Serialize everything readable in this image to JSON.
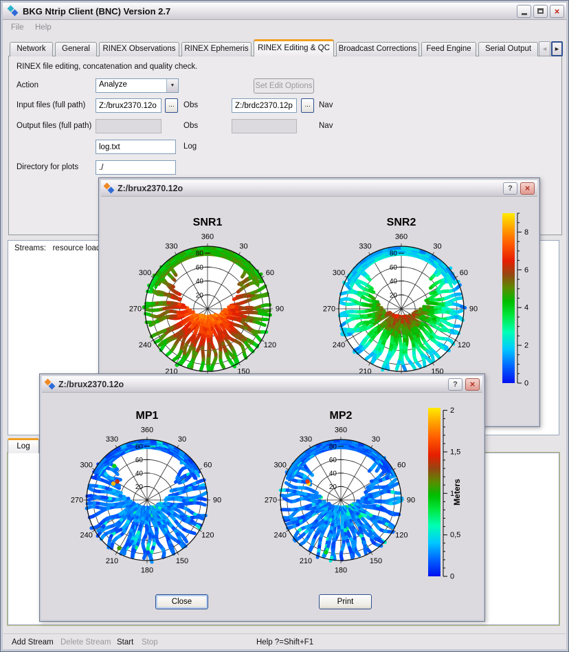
{
  "window": {
    "title": "BKG Ntrip Client (BNC) Version 2.7"
  },
  "icons": {
    "help": "?",
    "close": "×",
    "scroll_left": "◄",
    "scroll_right": "►",
    "combo_arrow": "▼"
  },
  "menu": {
    "items": [
      {
        "label": "File"
      },
      {
        "label": "Help"
      }
    ]
  },
  "tabs": {
    "items": [
      {
        "label": "Network",
        "active": false
      },
      {
        "label": "General",
        "active": false
      },
      {
        "label": "RINEX Observations",
        "active": false
      },
      {
        "label": "RINEX Ephemeris",
        "active": false
      },
      {
        "label": "RINEX Editing & QC",
        "active": true
      },
      {
        "label": "Broadcast Corrections",
        "active": false
      },
      {
        "label": "Feed Engine",
        "active": false
      },
      {
        "label": "Serial Output",
        "active": false
      }
    ],
    "scroll_left_enabled": false,
    "scroll_right_enabled": true
  },
  "qc": {
    "description": "RINEX file editing, concatenation and quality check.",
    "action_label": "Action",
    "action_value": "Analyze",
    "set_edit_options_label": "Set Edit Options",
    "input_files_label": "Input files (full path)",
    "input_obs_value": "Z:/brux2370.12o",
    "input_nav_value": "Z:/brdc2370.12p",
    "output_files_label": "Output files (full path)",
    "output_obs_value": "",
    "output_nav_value": "",
    "obs_label": "Obs",
    "nav_label": "Nav",
    "log_value": "log.txt",
    "log_label": "Log",
    "dir_label": "Directory for plots",
    "dir_value": "./",
    "browse_label": "..."
  },
  "streams": {
    "header": "Streams:   resource load"
  },
  "log_panel": {
    "tab_label": "Log"
  },
  "statusbar": {
    "items": [
      {
        "label": "Add Stream",
        "enabled": true
      },
      {
        "label": "Delete Stream",
        "enabled": false
      },
      {
        "label": "Start",
        "enabled": true
      },
      {
        "label": "Stop",
        "enabled": false
      }
    ],
    "help_label": "Help ?=Shift+F1"
  },
  "dialogs": [
    {
      "title": "Z:/brux2370.12o",
      "plots": [
        "SNR1",
        "SNR2"
      ],
      "colorbar": "SNR_scale"
    },
    {
      "title": "Z:/brux2370.12o",
      "plots": [
        "MP1",
        "MP2"
      ],
      "colorbar": "MP_scale",
      "buttons": [
        {
          "label": "Close"
        },
        {
          "label": "Print"
        }
      ]
    }
  ],
  "chart_data": {
    "colormap": [
      {
        "t": 0,
        "color": "#0010F0"
      },
      {
        "t": 0.1,
        "color": "#0064FF"
      },
      {
        "t": 0.2,
        "color": "#00C8FF"
      },
      {
        "t": 0.3,
        "color": "#00FFB4"
      },
      {
        "t": 0.4,
        "color": "#00E63C"
      },
      {
        "t": 0.48,
        "color": "#00BE00"
      },
      {
        "t": 0.56,
        "color": "#5A8C00"
      },
      {
        "t": 0.64,
        "color": "#964612"
      },
      {
        "t": 0.72,
        "color": "#E61E00"
      },
      {
        "t": 0.82,
        "color": "#FF5A00"
      },
      {
        "t": 0.91,
        "color": "#FFA000"
      },
      {
        "t": 1,
        "color": "#FFEB00"
      }
    ],
    "plots": [
      {
        "id": "SNR1",
        "type": "polar-skyplot",
        "title": "SNR1",
        "azimuth_labels": [
          "360",
          "30",
          "60",
          "90",
          "120",
          "150",
          "180",
          "210",
          "240",
          "270",
          "300",
          "330"
        ],
        "elevation_rings": [
          20,
          40,
          60,
          80
        ],
        "elevation_ring_labels": [
          "20",
          "40",
          "60",
          "80"
        ],
        "value_max": 9,
        "value_center": 8.3,
        "value_edge": 4.2,
        "value_noise": 0.45,
        "curve": 1.15,
        "seed": 11,
        "stroke_count": 48,
        "az_min": 45,
        "az_max": 315,
        "north_arcs": 7,
        "arc_span": 64,
        "stroke_width": 5,
        "fleck_chance": 0,
        "fleck_boost": 0,
        "outliers": []
      },
      {
        "id": "SNR2",
        "type": "polar-skyplot",
        "title": "SNR2",
        "azimuth_labels": [
          "360",
          "30",
          "60",
          "90",
          "120",
          "150",
          "180",
          "210",
          "240",
          "270",
          "300",
          "330"
        ],
        "elevation_rings": [
          20,
          40,
          60,
          80
        ],
        "elevation_ring_labels": [
          "20",
          "40",
          "60",
          "80"
        ],
        "value_max": 9,
        "value_center": 7.0,
        "value_edge": 1.5,
        "value_noise": 0.55,
        "curve": 1.0,
        "seed": 23,
        "stroke_count": 48,
        "az_min": 45,
        "az_max": 315,
        "north_arcs": 7,
        "arc_span": 64,
        "stroke_width": 5,
        "fleck_chance": 0,
        "fleck_boost": 0,
        "outliers": []
      },
      {
        "id": "MP1",
        "type": "polar-skyplot",
        "title": "MP1",
        "azimuth_labels": [
          "360",
          "30",
          "60",
          "90",
          "120",
          "150",
          "180",
          "210",
          "240",
          "270",
          "300",
          "330"
        ],
        "elevation_rings": [
          20,
          40,
          60,
          80
        ],
        "elevation_ring_labels": [
          "20",
          "40",
          "60",
          "80"
        ],
        "value_max": 2.03,
        "value_center": 0.3,
        "value_edge": 0.2,
        "value_noise": 0.11,
        "curve": 1.0,
        "seed": 37,
        "stroke_count": 48,
        "az_min": 45,
        "az_max": 315,
        "north_arcs": 7,
        "arc_span": 64,
        "stroke_width": 5,
        "fleck_chance": 0.09,
        "fleck_boost": 0.3,
        "outliers": [
          {
            "az": 296,
            "r": 0.62,
            "value": 1.9
          },
          {
            "az": 302,
            "r": 0.58,
            "value": 1.4
          },
          {
            "az": 210,
            "r": 0.92,
            "value": 1.1
          },
          {
            "az": 316,
            "r": 0.78,
            "value": 0.9
          }
        ]
      },
      {
        "id": "MP2",
        "type": "polar-skyplot",
        "title": "MP2",
        "azimuth_labels": [
          "360",
          "30",
          "60",
          "90",
          "120",
          "150",
          "180",
          "210",
          "240",
          "270",
          "300",
          "330"
        ],
        "elevation_rings": [
          20,
          40,
          60,
          80
        ],
        "elevation_ring_labels": [
          "20",
          "40",
          "60",
          "80"
        ],
        "value_max": 2.03,
        "value_center": 0.3,
        "value_edge": 0.2,
        "value_noise": 0.11,
        "curve": 1.0,
        "seed": 51,
        "stroke_count": 48,
        "az_min": 45,
        "az_max": 315,
        "north_arcs": 7,
        "arc_span": 64,
        "stroke_width": 5,
        "fleck_chance": 0.09,
        "fleck_boost": 0.3,
        "outliers": [
          {
            "az": 297,
            "r": 0.6,
            "value": 2.0
          },
          {
            "az": 299,
            "r": 0.63,
            "value": 1.55
          },
          {
            "az": 196,
            "r": 0.9,
            "value": 0.9
          }
        ]
      }
    ],
    "colorbars": [
      {
        "id": "SNR_scale",
        "type": "colorbar",
        "min": 0,
        "max": 9,
        "unit": "",
        "major_ticks": [
          {
            "value": 0,
            "label": "0"
          },
          {
            "value": 2,
            "label": "2"
          },
          {
            "value": 4,
            "label": "4"
          },
          {
            "value": 6,
            "label": "6"
          },
          {
            "value": 8,
            "label": "8"
          }
        ],
        "minor_step": 0.5
      },
      {
        "id": "MP_scale",
        "type": "colorbar",
        "min": 0,
        "max": 2.03,
        "unit": "Meters",
        "major_ticks": [
          {
            "value": 0,
            "label": "0"
          },
          {
            "value": 0.5,
            "label": "0,5"
          },
          {
            "value": 1,
            "label": "1"
          },
          {
            "value": 1.5,
            "label": "1,5"
          },
          {
            "value": 2,
            "label": "2"
          }
        ],
        "minor_step": 0.1
      }
    ]
  }
}
